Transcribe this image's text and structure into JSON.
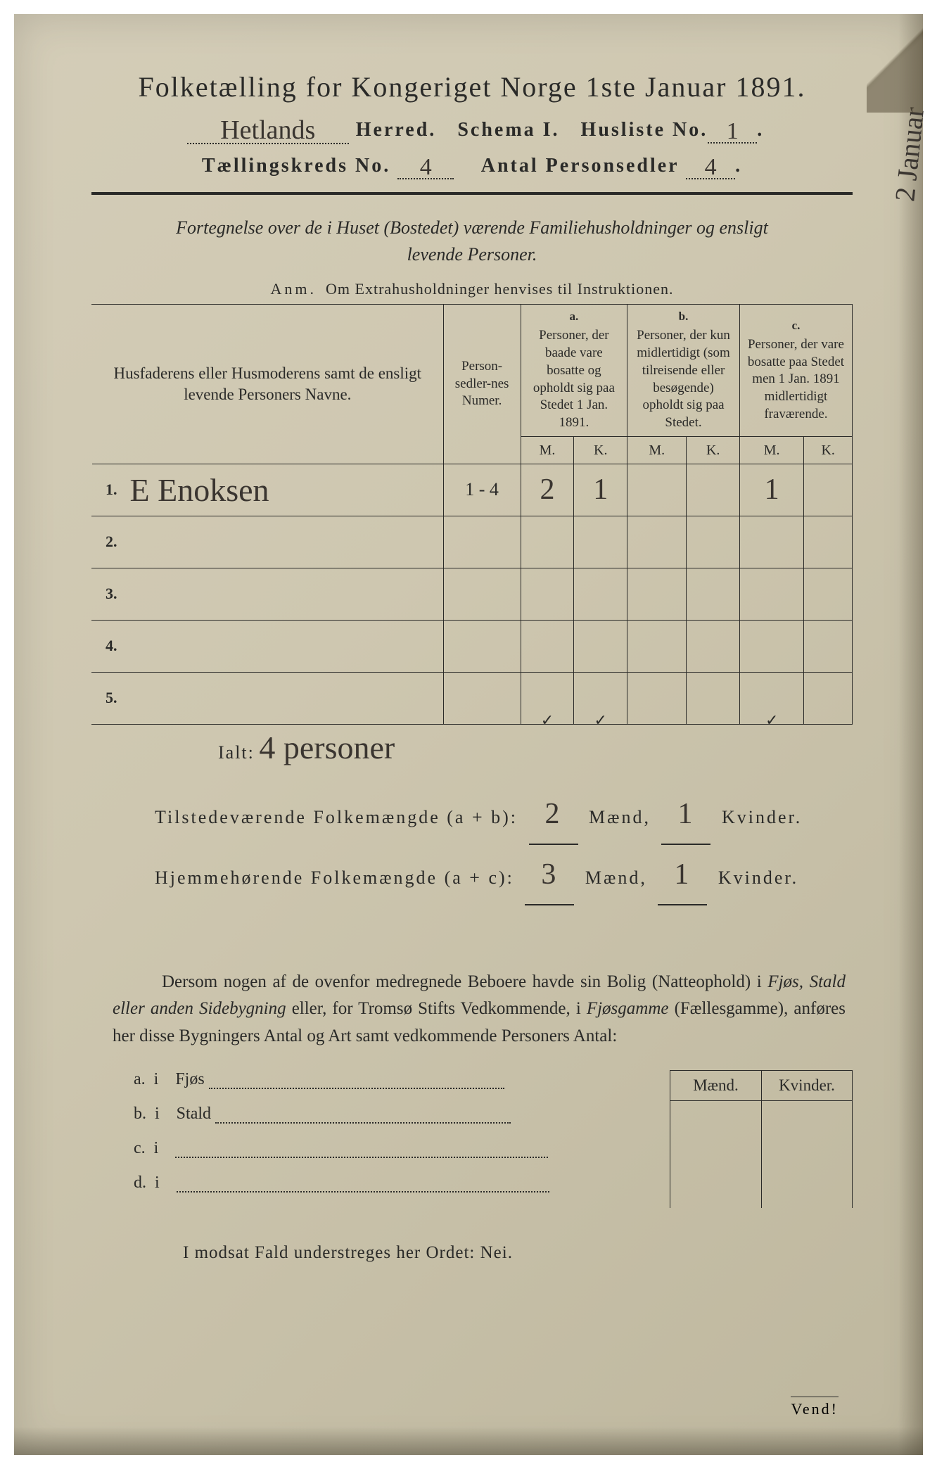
{
  "header": {
    "title": "Folketælling for Kongeriget Norge 1ste Januar 1891.",
    "herred_hand": "Hetlands",
    "herred_label": "Herred.",
    "schema_label": "Schema I.",
    "husliste_label": "Husliste No.",
    "husliste_no": "1",
    "kreds_label": "Tællingskreds No.",
    "kreds_no": "4",
    "antal_label": "Antal Personsedler",
    "antal_no": "4"
  },
  "margin_note": "2 Januar",
  "fortegnelse": {
    "line1": "Fortegnelse over de i Huset (Bostedet) værende Familiehusholdninger og ensligt",
    "line2": "levende Personer."
  },
  "anm": {
    "label": "Anm.",
    "text": "Om Extrahusholdninger henvises til Instruktionen."
  },
  "table": {
    "head": {
      "names": "Husfaderens eller Husmoderens samt de ensligt levende Personers Navne.",
      "nummer": "Person-sedler-nes Numer.",
      "a_tag": "a.",
      "a": "Personer, der baade vare bosatte og opholdt sig paa Stedet 1 Jan. 1891.",
      "b_tag": "b.",
      "b": "Personer, der kun midlertidigt (som tilreisende eller besøgende) opholdt sig paa Stedet.",
      "c_tag": "c.",
      "c": "Personer, der vare bosatte paa Stedet men 1 Jan. 1891 midlertidigt fraværende.",
      "m": "M.",
      "k": "K."
    },
    "rows": [
      {
        "n": "1.",
        "name": "E  Enoksen",
        "numer": "1 - 4",
        "a_m": "2",
        "a_k": "1",
        "b_m": "",
        "b_k": "",
        "c_m": "1",
        "c_k": ""
      },
      {
        "n": "2.",
        "name": "",
        "numer": "",
        "a_m": "",
        "a_k": "",
        "b_m": "",
        "b_k": "",
        "c_m": "",
        "c_k": ""
      },
      {
        "n": "3.",
        "name": "",
        "numer": "",
        "a_m": "",
        "a_k": "",
        "b_m": "",
        "b_k": "",
        "c_m": "",
        "c_k": ""
      },
      {
        "n": "4.",
        "name": "",
        "numer": "",
        "a_m": "",
        "a_k": "",
        "b_m": "",
        "b_k": "",
        "c_m": "",
        "c_k": ""
      },
      {
        "n": "5.",
        "name": "",
        "numer": "",
        "a_m": "✓",
        "a_k": "✓",
        "b_m": "",
        "b_k": "",
        "c_m": "✓",
        "c_k": ""
      }
    ]
  },
  "ialt": {
    "label": "Ialt:",
    "value": "4  personer"
  },
  "summary": {
    "line1_label": "Tilstedeværende Folkemængde (a + b):",
    "line1_m": "2",
    "maend": "Mænd,",
    "line1_k": "1",
    "kvinder": "Kvinder.",
    "line2_label": "Hjemmehørende Folkemængde (a + c):",
    "line2_m": "3",
    "line2_k": "1"
  },
  "dersom": {
    "text1": "Dersom nogen af de ovenfor medregnede Beboere havde sin Bolig (Natteophold) i ",
    "em1": "Fjøs, Stald eller anden Sidebygning",
    "text2": " eller, for Tromsø Stifts Vedkommende, i ",
    "em2": "Fjøsgamme",
    "text3": " (Fællesgamme), anføres her disse Bygningers Antal og Art samt vedkommende Personers Antal:"
  },
  "lower": {
    "lines": [
      {
        "tag": "a.",
        "i": "i",
        "label": "Fjøs"
      },
      {
        "tag": "b.",
        "i": "i",
        "label": "Stald"
      },
      {
        "tag": "c.",
        "i": "i",
        "label": ""
      },
      {
        "tag": "d.",
        "i": "i",
        "label": ""
      }
    ],
    "maend": "Mænd.",
    "kvinder": "Kvinder."
  },
  "modsat": "I modsat Fald understreges her Ordet: Nei.",
  "vend": "Vend!",
  "colors": {
    "ink": "#2a2a28",
    "handwriting": "#3a3530",
    "paper_light": "#d4cdb8",
    "paper_dark": "#beb79e"
  }
}
